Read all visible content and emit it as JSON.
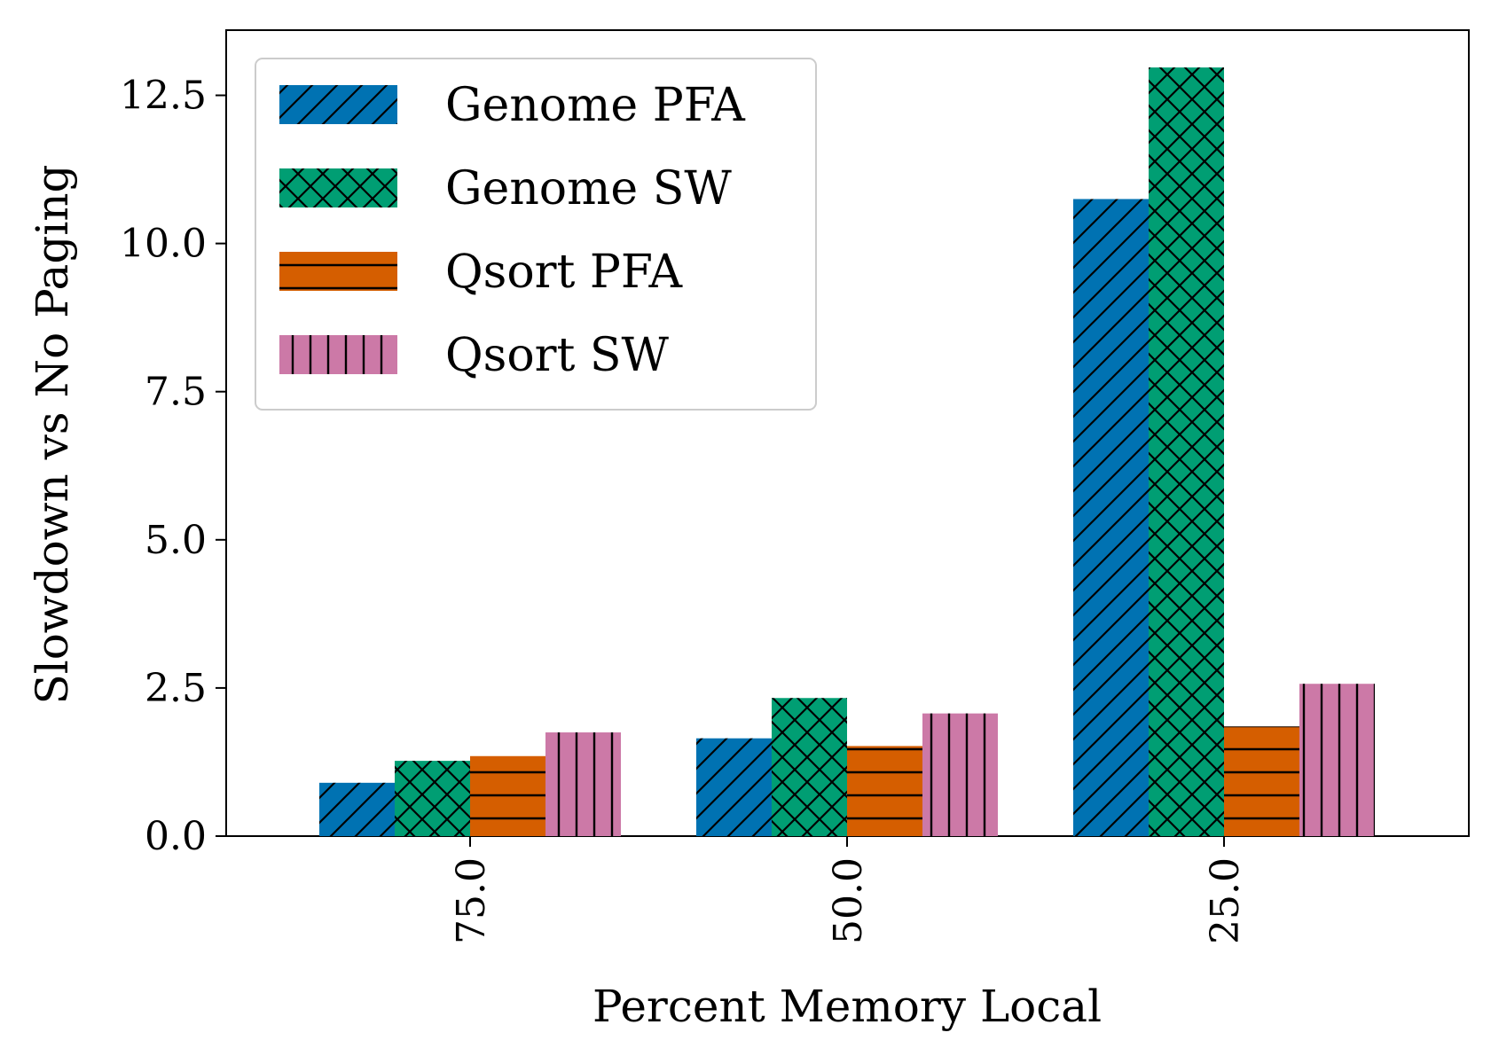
{
  "chart_data": {
    "type": "bar",
    "title": "",
    "xlabel": "Percent Memory Local",
    "ylabel": "Slowdown vs No Paging",
    "categories": [
      "75.0",
      "50.0",
      "25.0"
    ],
    "ylim": [
      0,
      13.6
    ],
    "yticks": [
      0.0,
      2.5,
      5.0,
      7.5,
      10.0,
      12.5
    ],
    "ytick_labels": [
      "0.0",
      "2.5",
      "5.0",
      "7.5",
      "10.0",
      "12.5"
    ],
    "grid": false,
    "legend_position": "top-left",
    "series": [
      {
        "name": "Genome PFA",
        "values": [
          0.9,
          1.65,
          10.75
        ],
        "color": "#0072b2",
        "hatch": "diagonal"
      },
      {
        "name": "Genome SW",
        "values": [
          1.27,
          2.33,
          12.97
        ],
        "color": "#009e73",
        "hatch": "cross"
      },
      {
        "name": "Qsort PFA",
        "values": [
          1.35,
          1.52,
          1.85
        ],
        "color": "#d55e00",
        "hatch": "horizontal"
      },
      {
        "name": "Qsort SW",
        "values": [
          1.75,
          2.07,
          2.57
        ],
        "color": "#cc79a7",
        "hatch": "vertical"
      }
    ]
  }
}
